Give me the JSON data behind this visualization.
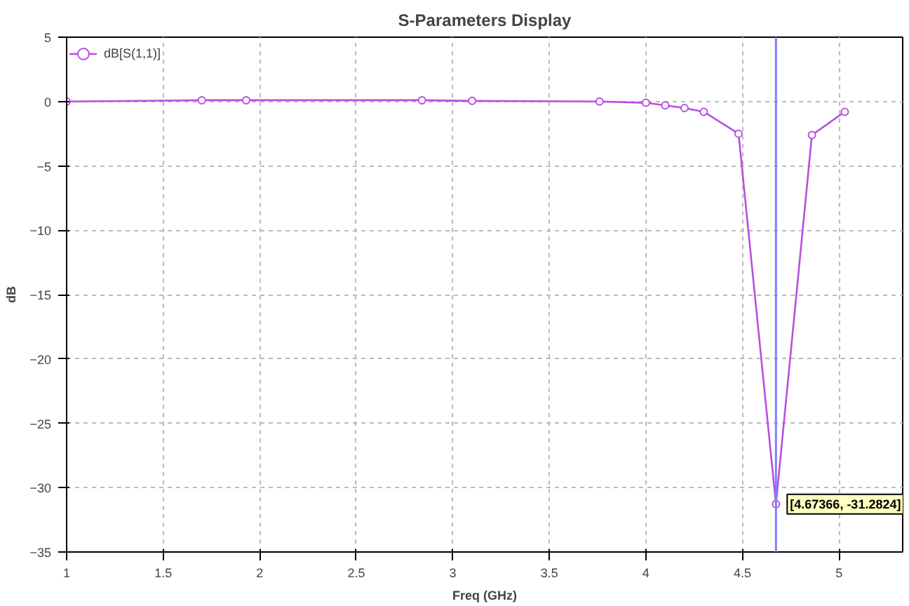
{
  "chart_data": {
    "type": "line",
    "title": "S-Parameters Display",
    "xlabel": "Freq (GHz)",
    "ylabel": "dB",
    "x": [
      1,
      1.7,
      1.93,
      2.84,
      3.1,
      3.76,
      4.0,
      4.1,
      4.2,
      4.3,
      4.48,
      4.67366,
      4.86,
      5.03
    ],
    "series": [
      {
        "name": "dB[S(1,1)]",
        "color": "#b84ee0",
        "values": [
          0,
          0.1,
          0.1,
          0.1,
          0.05,
          0,
          -0.1,
          -0.3,
          -0.5,
          -0.8,
          -2.5,
          -31.28,
          -2.6,
          -0.8
        ]
      }
    ],
    "xlim": [
      1,
      5.33
    ],
    "ylim": [
      -35,
      5
    ],
    "xticks": [
      1,
      1.5,
      2,
      2.5,
      3,
      3.5,
      4,
      4.5,
      5
    ],
    "yticks": [
      -35,
      -30,
      -25,
      -20,
      -15,
      -10,
      -5,
      0,
      5
    ],
    "grid": true,
    "legend": "top left",
    "marker": "circle",
    "line_style": "solid",
    "ref_lines": [
      {
        "axis": "x",
        "value": 4.67366,
        "label": null,
        "color": "#8080ff"
      }
    ],
    "annotations": [
      {
        "text": "[4.67366, -31.2824]",
        "x": 4.67366,
        "y": -31.2824
      }
    ]
  }
}
